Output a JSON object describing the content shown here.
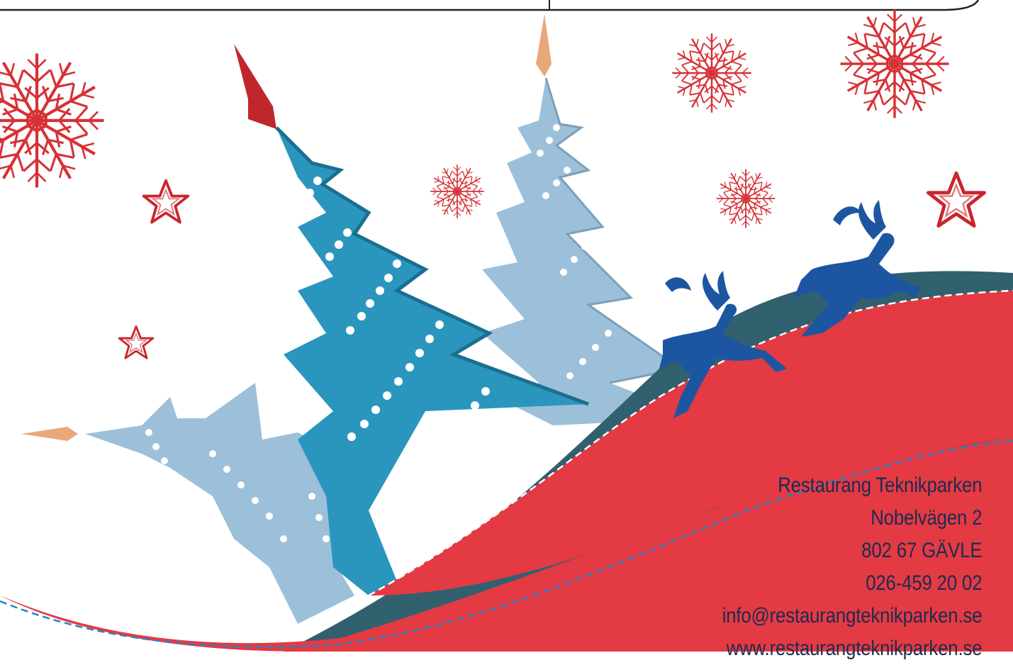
{
  "contact": {
    "name": "Restaurang Teknikparken",
    "street": "Nobelvägen 2",
    "postal": "802 67 GÄVLE",
    "phone": "026-459 20 02",
    "email": "info@restaurangteknikparken.se",
    "web": "www.restaurangteknikparken.se"
  },
  "colors": {
    "red": "#e33a43",
    "slate": "#31606f",
    "tree_blue": "#2b96bd",
    "tree_light": "#9cc0da",
    "reindeer": "#1d56a0",
    "snowflake": "#d63137",
    "text": "#1e2b50"
  }
}
